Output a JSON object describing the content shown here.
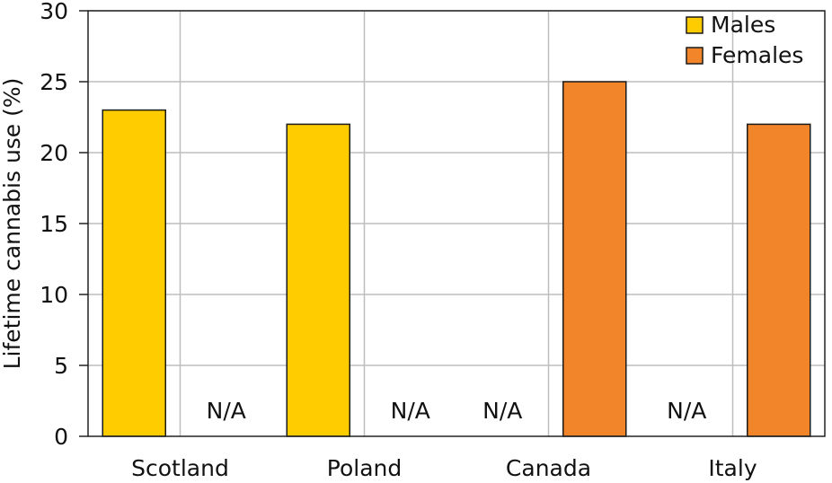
{
  "chart_data": {
    "type": "bar",
    "categories": [
      "Scotland",
      "Poland",
      "Canada",
      "Italy"
    ],
    "ylabel": "Lifetime cannabis use (%)",
    "xlabel": "",
    "ylim": [
      0,
      30
    ],
    "yticks": [
      0,
      5,
      10,
      15,
      20,
      25,
      30
    ],
    "grid": true,
    "legend_position": "top-right",
    "na_label": "N/A",
    "series": [
      {
        "name": "Males",
        "color": "#FFCC00",
        "values": [
          23,
          22,
          null,
          null
        ]
      },
      {
        "name": "Females",
        "color": "#F2852A",
        "values": [
          null,
          null,
          25,
          22
        ]
      }
    ]
  }
}
